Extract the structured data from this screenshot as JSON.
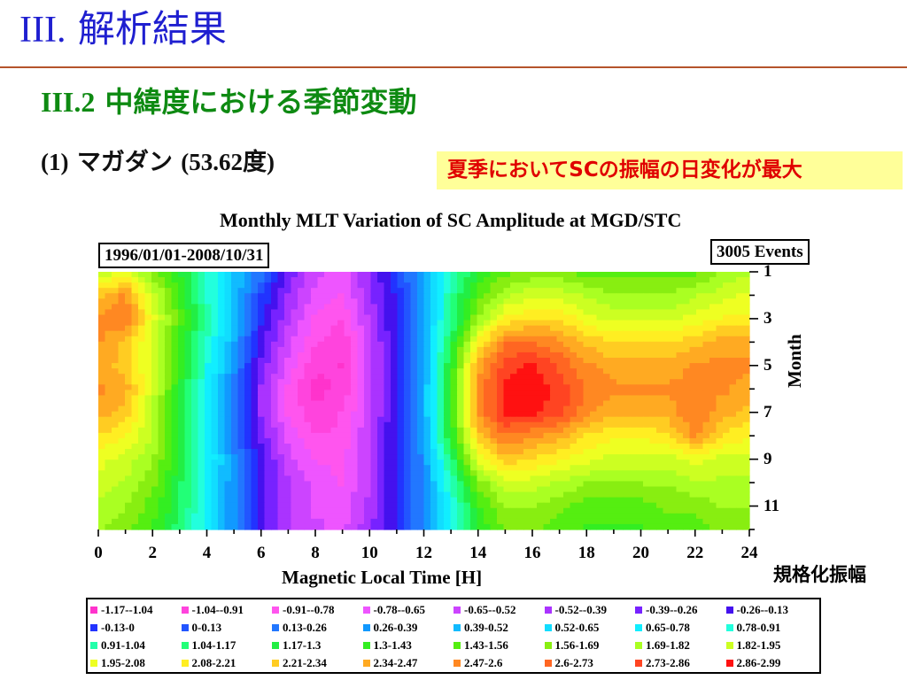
{
  "slide": {
    "title_num": "III.",
    "title_text": " 解析結果",
    "section_num": "III.2",
    "section_text": " 中緯度における季節変動",
    "station_num": "(1)",
    "station_name": " マガダン ",
    "station_lat": "(53.62度)",
    "highlight": "夏季においてSCの振幅の日変化が最大",
    "scale_label": "規格化振幅"
  },
  "colors": {
    "title_blue": "#1f1fd0",
    "rule_brown": "#b5542b",
    "section_green": "#0e8a12",
    "highlight_bg": "#ffff99",
    "highlight_text": "#e00000"
  },
  "chart_data": {
    "type": "heatmap",
    "title": "Monthly MLT Variation of SC Amplitude at MGD/STC",
    "date_range": "1996/01/01-2008/10/31",
    "events": "3005 Events",
    "xlabel": "Magnetic Local Time [H]",
    "ylabel": "Month",
    "xlim": [
      0,
      24
    ],
    "ylim": [
      1,
      12
    ],
    "x_ticks": [
      "0",
      "2",
      "4",
      "6",
      "8",
      "10",
      "12",
      "14",
      "16",
      "18",
      "20",
      "22",
      "24"
    ],
    "y_ticks": [
      "1",
      "3",
      "5",
      "7",
      "9",
      "11"
    ],
    "x": [
      0,
      1,
      2,
      3,
      4,
      5,
      6,
      7,
      8,
      9,
      10,
      11,
      12,
      13,
      14,
      15,
      16,
      17,
      18,
      19,
      20,
      21,
      22,
      23,
      24
    ],
    "y": [
      1,
      2,
      3,
      4,
      5,
      6,
      7,
      8,
      9,
      10,
      11,
      12
    ],
    "z": [
      [
        1.8,
        2.0,
        1.6,
        1.3,
        0.9,
        0.5,
        0.2,
        -0.3,
        -0.6,
        -0.7,
        -0.4,
        0.0,
        0.4,
        0.9,
        1.3,
        1.5,
        1.6,
        1.6,
        1.5,
        1.5,
        1.5,
        1.5,
        1.5,
        1.7,
        1.8
      ],
      [
        2.3,
        2.5,
        1.9,
        1.4,
        0.9,
        0.5,
        0.0,
        -0.4,
        -0.7,
        -0.8,
        -0.4,
        -0.1,
        0.4,
        1.0,
        1.5,
        1.8,
        1.9,
        1.9,
        1.8,
        1.7,
        1.7,
        1.7,
        1.8,
        1.9,
        2.0
      ],
      [
        2.5,
        2.6,
        2.0,
        1.5,
        1.0,
        0.5,
        -0.1,
        -0.5,
        -0.8,
        -0.9,
        -0.5,
        -0.1,
        0.4,
        1.0,
        1.7,
        2.1,
        2.2,
        2.2,
        2.0,
        1.9,
        1.9,
        1.9,
        2.0,
        2.1,
        2.1
      ],
      [
        2.5,
        2.3,
        1.9,
        1.4,
        0.9,
        0.4,
        -0.2,
        -0.6,
        -0.9,
        -1.0,
        -0.6,
        -0.1,
        0.4,
        1.2,
        2.1,
        2.6,
        2.6,
        2.5,
        2.3,
        2.2,
        2.2,
        2.2,
        2.3,
        2.4,
        2.4
      ],
      [
        2.4,
        2.3,
        1.9,
        1.4,
        0.8,
        0.3,
        -0.3,
        -0.7,
        -1.0,
        -1.05,
        -0.6,
        -0.1,
        0.4,
        1.3,
        2.4,
        2.8,
        2.9,
        2.7,
        2.5,
        2.4,
        2.4,
        2.4,
        2.5,
        2.5,
        2.5
      ],
      [
        2.5,
        2.4,
        1.9,
        1.3,
        0.8,
        0.2,
        -0.4,
        -0.8,
        -1.1,
        -1.0,
        -0.6,
        -0.1,
        0.4,
        1.4,
        2.5,
        2.9,
        2.95,
        2.8,
        2.6,
        2.5,
        2.5,
        2.5,
        2.5,
        2.5,
        2.4
      ],
      [
        2.4,
        2.3,
        1.8,
        1.3,
        0.8,
        0.2,
        -0.4,
        -0.8,
        -1.0,
        -0.9,
        -0.6,
        -0.1,
        0.4,
        1.4,
        2.5,
        2.9,
        2.9,
        2.8,
        2.5,
        2.4,
        2.4,
        2.4,
        2.6,
        2.4,
        2.3
      ],
      [
        2.2,
        2.1,
        1.8,
        1.3,
        0.8,
        0.2,
        -0.3,
        -0.7,
        -0.9,
        -0.9,
        -0.5,
        -0.1,
        0.4,
        1.3,
        2.3,
        2.6,
        2.5,
        2.4,
        2.2,
        2.1,
        2.1,
        2.2,
        2.5,
        2.2,
        2.1
      ],
      [
        2.0,
        1.9,
        1.7,
        1.3,
        0.8,
        0.3,
        -0.2,
        -0.6,
        -0.8,
        -0.8,
        -0.5,
        -0.1,
        0.3,
        1.1,
        2.0,
        2.3,
        2.2,
        2.1,
        2.0,
        1.9,
        1.9,
        1.9,
        2.0,
        1.9,
        1.9
      ],
      [
        1.9,
        1.8,
        1.6,
        1.2,
        0.7,
        0.3,
        -0.2,
        -0.5,
        -0.7,
        -0.8,
        -0.5,
        -0.1,
        0.3,
        0.9,
        1.6,
        1.9,
        1.9,
        1.8,
        1.7,
        1.7,
        1.7,
        1.7,
        1.8,
        1.8,
        1.8
      ],
      [
        1.8,
        1.7,
        1.5,
        1.2,
        0.7,
        0.3,
        -0.2,
        -0.5,
        -0.7,
        -0.7,
        -0.5,
        -0.1,
        0.3,
        0.8,
        1.4,
        1.7,
        1.7,
        1.6,
        1.5,
        1.5,
        1.5,
        1.6,
        1.6,
        1.7,
        1.7
      ],
      [
        1.7,
        1.6,
        1.4,
        1.1,
        0.7,
        0.3,
        -0.2,
        -0.5,
        -0.6,
        -0.7,
        -0.4,
        -0.1,
        0.3,
        0.8,
        1.3,
        1.6,
        1.6,
        1.5,
        1.4,
        1.4,
        1.4,
        1.5,
        1.5,
        1.6,
        1.6
      ]
    ],
    "legend": [
      {
        "label": "-1.17--1.04",
        "color": "#ff33cc",
        "min": -1.17,
        "max": -1.04
      },
      {
        "label": "-1.04--0.91",
        "color": "#ff44dd",
        "min": -1.04,
        "max": -0.91
      },
      {
        "label": "-0.91--0.78",
        "color": "#ff55ee",
        "min": -0.91,
        "max": -0.78
      },
      {
        "label": "-0.78--0.65",
        "color": "#ee55ff",
        "min": -0.78,
        "max": -0.65
      },
      {
        "label": "-0.65--0.52",
        "color": "#cc44ff",
        "min": -0.65,
        "max": -0.52
      },
      {
        "label": "-0.52--0.39",
        "color": "#aa33ff",
        "min": -0.52,
        "max": -0.39
      },
      {
        "label": "-0.39--0.26",
        "color": "#7722ff",
        "min": -0.39,
        "max": -0.26
      },
      {
        "label": "-0.26--0.13",
        "color": "#4411ee",
        "min": -0.26,
        "max": -0.13
      },
      {
        "label": "-0.13-0",
        "color": "#2233ff",
        "min": -0.13,
        "max": 0.0
      },
      {
        "label": "0-0.13",
        "color": "#2255ff",
        "min": 0.0,
        "max": 0.13
      },
      {
        "label": "0.13-0.26",
        "color": "#2277ff",
        "min": 0.13,
        "max": 0.26
      },
      {
        "label": "0.26-0.39",
        "color": "#1199ff",
        "min": 0.26,
        "max": 0.39
      },
      {
        "label": "0.39-0.52",
        "color": "#11bbff",
        "min": 0.39,
        "max": 0.52
      },
      {
        "label": "0.52-0.65",
        "color": "#11ddff",
        "min": 0.52,
        "max": 0.65
      },
      {
        "label": "0.65-0.78",
        "color": "#11eeff",
        "min": 0.65,
        "max": 0.78
      },
      {
        "label": "0.78-0.91",
        "color": "#22ffdd",
        "min": 0.78,
        "max": 0.91
      },
      {
        "label": "0.91-1.04",
        "color": "#22ffaa",
        "min": 0.91,
        "max": 1.04
      },
      {
        "label": "1.04-1.17",
        "color": "#22ff77",
        "min": 1.04,
        "max": 1.17
      },
      {
        "label": "1.17-1.3",
        "color": "#22ee44",
        "min": 1.17,
        "max": 1.3
      },
      {
        "label": "1.3-1.43",
        "color": "#33ee22",
        "min": 1.3,
        "max": 1.43
      },
      {
        "label": "1.43-1.56",
        "color": "#55ee11",
        "min": 1.43,
        "max": 1.56
      },
      {
        "label": "1.56-1.69",
        "color": "#88ee11",
        "min": 1.56,
        "max": 1.69
      },
      {
        "label": "1.69-1.82",
        "color": "#aaff22",
        "min": 1.69,
        "max": 1.82
      },
      {
        "label": "1.82-1.95",
        "color": "#ccff22",
        "min": 1.82,
        "max": 1.95
      },
      {
        "label": "1.95-2.08",
        "color": "#eeff22",
        "min": 1.95,
        "max": 2.08
      },
      {
        "label": "2.08-2.21",
        "color": "#ffee22",
        "min": 2.08,
        "max": 2.21
      },
      {
        "label": "2.21-2.34",
        "color": "#ffcc22",
        "min": 2.21,
        "max": 2.34
      },
      {
        "label": "2.34-2.47",
        "color": "#ffaa22",
        "min": 2.34,
        "max": 2.47
      },
      {
        "label": "2.47-2.6",
        "color": "#ff8822",
        "min": 2.47,
        "max": 2.6
      },
      {
        "label": "2.6-2.73",
        "color": "#ff6622",
        "min": 2.6,
        "max": 2.73
      },
      {
        "label": "2.73-2.86",
        "color": "#ff4422",
        "min": 2.73,
        "max": 2.86
      },
      {
        "label": "2.86-2.99",
        "color": "#ff1111",
        "min": 2.86,
        "max": 2.99
      }
    ]
  }
}
